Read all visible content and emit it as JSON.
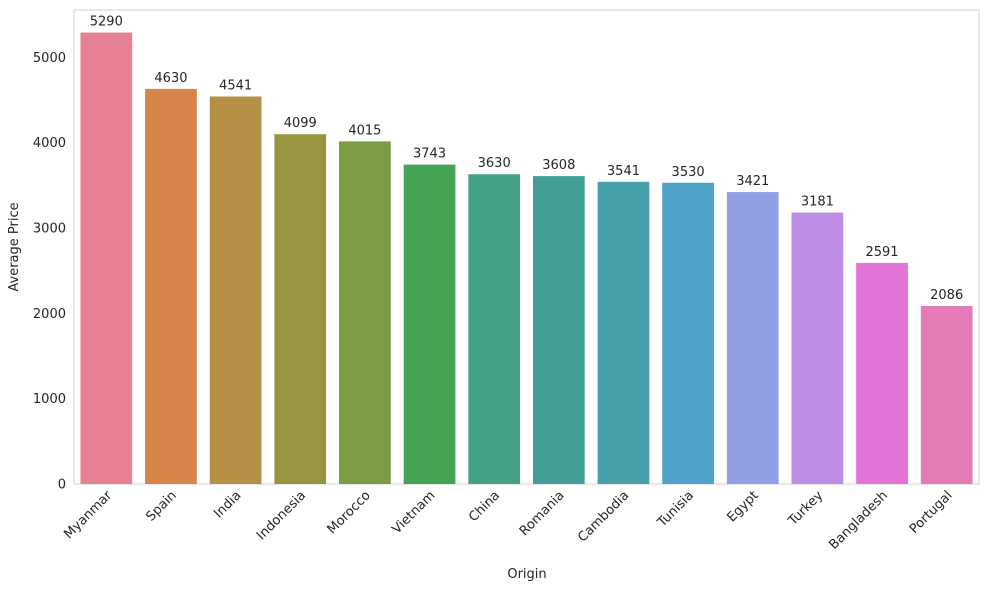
{
  "chart_data": {
    "type": "bar",
    "x_label": "Origin",
    "y_label": "Average Price",
    "categories": [
      "Myanmar",
      "Spain",
      "India",
      "Indonesia",
      "Morocco",
      "Vietnam",
      "China",
      "Romania",
      "Cambodia",
      "Tunisia",
      "Egypt",
      "Turkey",
      "Bangladesh",
      "Portugal"
    ],
    "values": [
      5290,
      4630,
      4541,
      4099,
      4015,
      3743,
      3630,
      3608,
      3541,
      3530,
      3421,
      3181,
      2591,
      2086
    ],
    "colors": [
      "#e68193",
      "#d8834a",
      "#b48f45",
      "#98943f",
      "#7c9c43",
      "#45a454",
      "#46a286",
      "#449e98",
      "#47a0aa",
      "#4ea2c9",
      "#919fe5",
      "#bd8ee4",
      "#e473d8",
      "#e47bb7"
    ],
    "ylim": [
      0,
      5554.5
    ],
    "yticks": [
      0,
      1000,
      2000,
      3000,
      4000,
      5000
    ],
    "grid": false
  }
}
